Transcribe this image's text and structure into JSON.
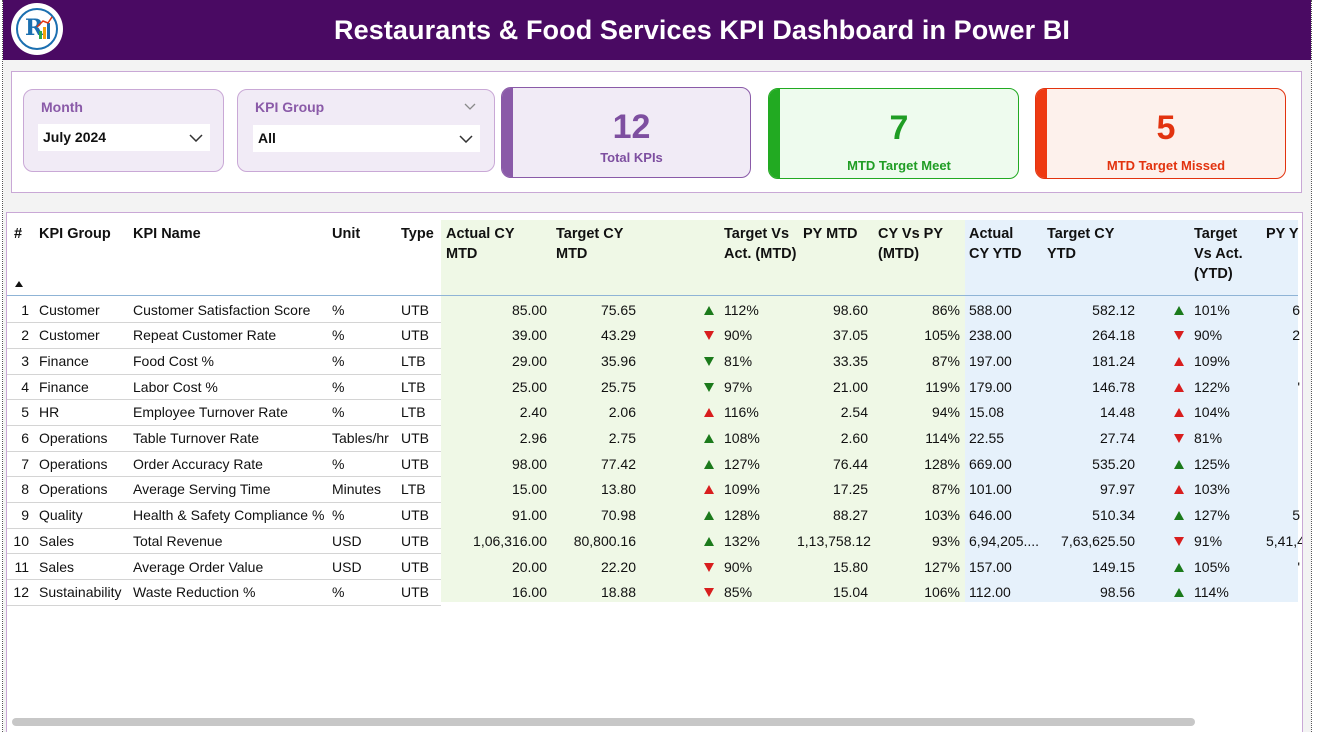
{
  "header": {
    "title": "Restaurants & Food Services KPI Dashboard in Power BI"
  },
  "filters": {
    "month": {
      "label": "Month",
      "value": "July 2024"
    },
    "kpi_group": {
      "label": "KPI Group",
      "value": "All"
    }
  },
  "cards": {
    "total": {
      "value": "12",
      "label": "Total KPIs",
      "color": "#7e4fa0"
    },
    "meet": {
      "value": "7",
      "label": "MTD Target Meet",
      "color": "#1f9d24"
    },
    "missed": {
      "value": "5",
      "label": "MTD Target Missed",
      "color": "#e2330f"
    }
  },
  "table": {
    "columns": [
      "#",
      "KPI Group",
      "KPI Name",
      "Unit",
      "Type",
      "Actual CY MTD",
      "Target CY MTD",
      "Target Vs Act. (MTD)",
      "PY MTD",
      "CY Vs PY (MTD)",
      "Actual CY YTD",
      "Target CY YTD",
      "Target Vs Act. (YTD)",
      "PY Y"
    ],
    "rows": [
      {
        "n": "1",
        "group": "Customer",
        "name": "Customer Satisfaction Score",
        "unit": "%",
        "type": "UTB",
        "act_mtd": "85.00",
        "tgt_mtd": "75.65",
        "mtd_icon": "up-green",
        "tva_mtd": "112%",
        "py_mtd": "98.60",
        "cvp_mtd": "86%",
        "act_ytd": "588.00",
        "tgt_ytd": "582.12",
        "ytd_icon": "up-green",
        "tva_ytd": "101%",
        "py_ytd": "6"
      },
      {
        "n": "2",
        "group": "Customer",
        "name": "Repeat Customer Rate",
        "unit": "%",
        "type": "UTB",
        "act_mtd": "39.00",
        "tgt_mtd": "43.29",
        "mtd_icon": "down-red",
        "tva_mtd": "90%",
        "py_mtd": "37.05",
        "cvp_mtd": "105%",
        "act_ytd": "238.00",
        "tgt_ytd": "264.18",
        "ytd_icon": "down-red",
        "tva_ytd": "90%",
        "py_ytd": "2"
      },
      {
        "n": "3",
        "group": "Finance",
        "name": "Food Cost %",
        "unit": "%",
        "type": "LTB",
        "act_mtd": "29.00",
        "tgt_mtd": "35.96",
        "mtd_icon": "down-green",
        "tva_mtd": "81%",
        "py_mtd": "33.35",
        "cvp_mtd": "87%",
        "act_ytd": "197.00",
        "tgt_ytd": "181.24",
        "ytd_icon": "up-red",
        "tva_ytd": "109%",
        "py_ytd": ""
      },
      {
        "n": "4",
        "group": "Finance",
        "name": "Labor Cost %",
        "unit": "%",
        "type": "LTB",
        "act_mtd": "25.00",
        "tgt_mtd": "25.75",
        "mtd_icon": "down-green",
        "tva_mtd": "97%",
        "py_mtd": "21.00",
        "cvp_mtd": "119%",
        "act_ytd": "179.00",
        "tgt_ytd": "146.78",
        "ytd_icon": "up-red",
        "tva_ytd": "122%",
        "py_ytd": "'"
      },
      {
        "n": "5",
        "group": "HR",
        "name": "Employee Turnover Rate",
        "unit": "%",
        "type": "LTB",
        "act_mtd": "2.40",
        "tgt_mtd": "2.06",
        "mtd_icon": "up-red",
        "tva_mtd": "116%",
        "py_mtd": "2.54",
        "cvp_mtd": "94%",
        "act_ytd": "15.08",
        "tgt_ytd": "14.48",
        "ytd_icon": "up-red",
        "tva_ytd": "104%",
        "py_ytd": ""
      },
      {
        "n": "6",
        "group": "Operations",
        "name": "Table Turnover Rate",
        "unit": "Tables/hr",
        "type": "UTB",
        "act_mtd": "2.96",
        "tgt_mtd": "2.75",
        "mtd_icon": "up-green",
        "tva_mtd": "108%",
        "py_mtd": "2.60",
        "cvp_mtd": "114%",
        "act_ytd": "22.55",
        "tgt_ytd": "27.74",
        "ytd_icon": "down-red",
        "tva_ytd": "81%",
        "py_ytd": ""
      },
      {
        "n": "7",
        "group": "Operations",
        "name": "Order Accuracy Rate",
        "unit": "%",
        "type": "UTB",
        "act_mtd": "98.00",
        "tgt_mtd": "77.42",
        "mtd_icon": "up-green",
        "tva_mtd": "127%",
        "py_mtd": "76.44",
        "cvp_mtd": "128%",
        "act_ytd": "669.00",
        "tgt_ytd": "535.20",
        "ytd_icon": "up-green",
        "tva_ytd": "125%",
        "py_ytd": ""
      },
      {
        "n": "8",
        "group": "Operations",
        "name": "Average Serving Time",
        "unit": "Minutes",
        "type": "LTB",
        "act_mtd": "15.00",
        "tgt_mtd": "13.80",
        "mtd_icon": "up-red",
        "tva_mtd": "109%",
        "py_mtd": "17.25",
        "cvp_mtd": "87%",
        "act_ytd": "101.00",
        "tgt_ytd": "97.97",
        "ytd_icon": "up-red",
        "tva_ytd": "103%",
        "py_ytd": ""
      },
      {
        "n": "9",
        "group": "Quality",
        "name": "Health & Safety Compliance %",
        "unit": "%",
        "type": "UTB",
        "act_mtd": "91.00",
        "tgt_mtd": "70.98",
        "mtd_icon": "up-green",
        "tva_mtd": "128%",
        "py_mtd": "88.27",
        "cvp_mtd": "103%",
        "act_ytd": "646.00",
        "tgt_ytd": "510.34",
        "ytd_icon": "up-green",
        "tva_ytd": "127%",
        "py_ytd": "5"
      },
      {
        "n": "10",
        "group": "Sales",
        "name": "Total Revenue",
        "unit": "USD",
        "type": "UTB",
        "act_mtd": "1,06,316.00",
        "tgt_mtd": "80,800.16",
        "mtd_icon": "up-green",
        "tva_mtd": "132%",
        "py_mtd": "1,13,758.12",
        "cvp_mtd": "93%",
        "act_ytd": "6,94,205....",
        "tgt_ytd": "7,63,625.50",
        "ytd_icon": "down-red",
        "tva_ytd": "91%",
        "py_ytd": "5,41,4"
      },
      {
        "n": "11",
        "group": "Sales",
        "name": "Average Order Value",
        "unit": "USD",
        "type": "UTB",
        "act_mtd": "20.00",
        "tgt_mtd": "22.20",
        "mtd_icon": "down-red",
        "tva_mtd": "90%",
        "py_mtd": "15.80",
        "cvp_mtd": "127%",
        "act_ytd": "157.00",
        "tgt_ytd": "149.15",
        "ytd_icon": "up-green",
        "tva_ytd": "105%",
        "py_ytd": "'"
      },
      {
        "n": "12",
        "group": "Sustainability",
        "name": "Waste Reduction %",
        "unit": "%",
        "type": "UTB",
        "act_mtd": "16.00",
        "tgt_mtd": "18.88",
        "mtd_icon": "down-red",
        "tva_mtd": "85%",
        "py_mtd": "15.04",
        "cvp_mtd": "106%",
        "act_ytd": "112.00",
        "tgt_ytd": "98.56",
        "ytd_icon": "up-green",
        "tva_ytd": "114%",
        "py_ytd": ""
      }
    ]
  }
}
